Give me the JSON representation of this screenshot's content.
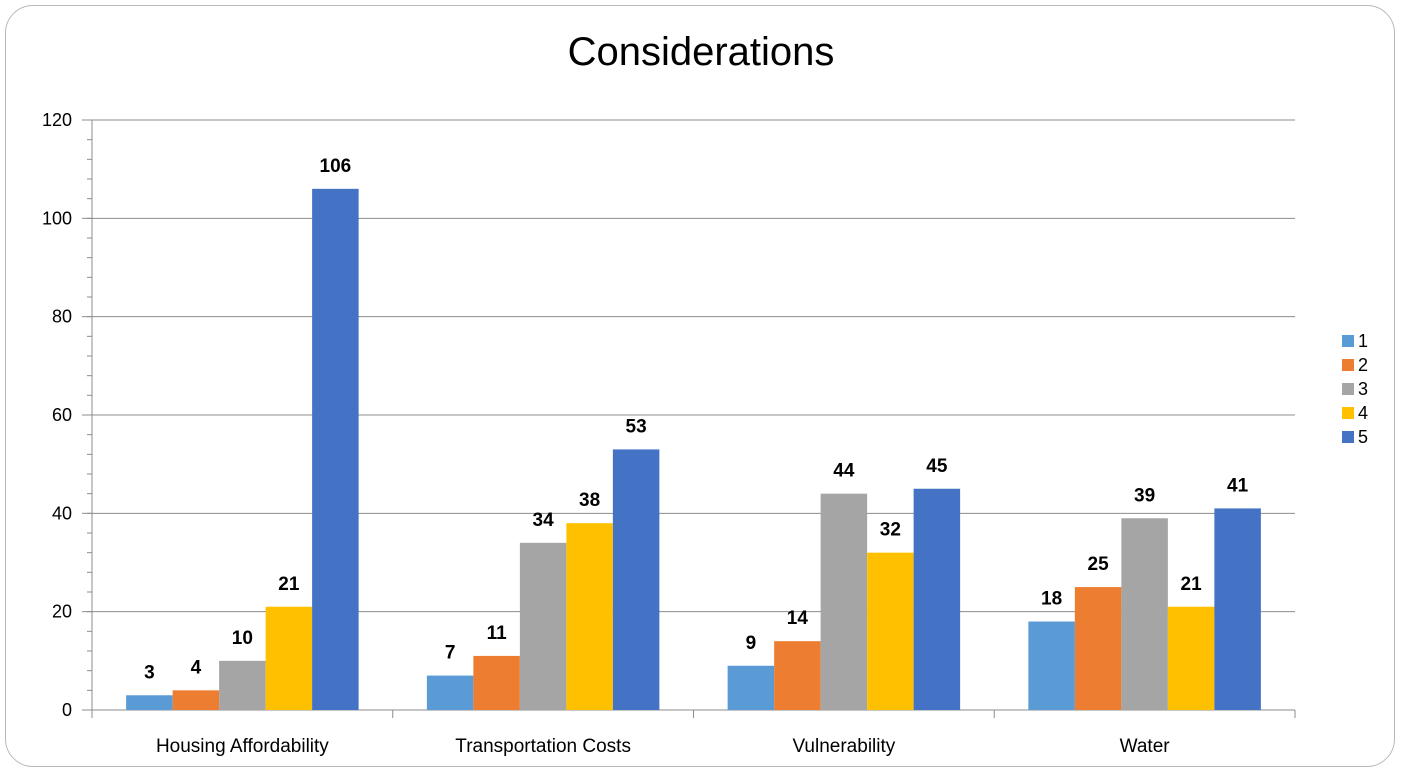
{
  "chart_data": {
    "type": "bar",
    "title": "Considerations",
    "xlabel": "",
    "ylabel": "",
    "categories": [
      "Housing Affordability",
      "Transportation Costs",
      "Vulnerability",
      "Water"
    ],
    "series": [
      {
        "name": "1",
        "color": "#5b9bd5",
        "values": [
          3,
          7,
          9,
          18
        ]
      },
      {
        "name": "2",
        "color": "#ed7d31",
        "values": [
          4,
          11,
          14,
          25
        ]
      },
      {
        "name": "3",
        "color": "#a5a5a5",
        "values": [
          10,
          34,
          44,
          39
        ]
      },
      {
        "name": "4",
        "color": "#ffc000",
        "values": [
          21,
          38,
          32,
          21
        ]
      },
      {
        "name": "5",
        "color": "#4472c4",
        "values": [
          106,
          53,
          45,
          41
        ]
      }
    ],
    "ylim": [
      0,
      120
    ],
    "yticks": [
      0,
      20,
      40,
      60,
      80,
      100,
      120
    ],
    "grid": true,
    "legend_position": "right",
    "data_labels": true
  }
}
